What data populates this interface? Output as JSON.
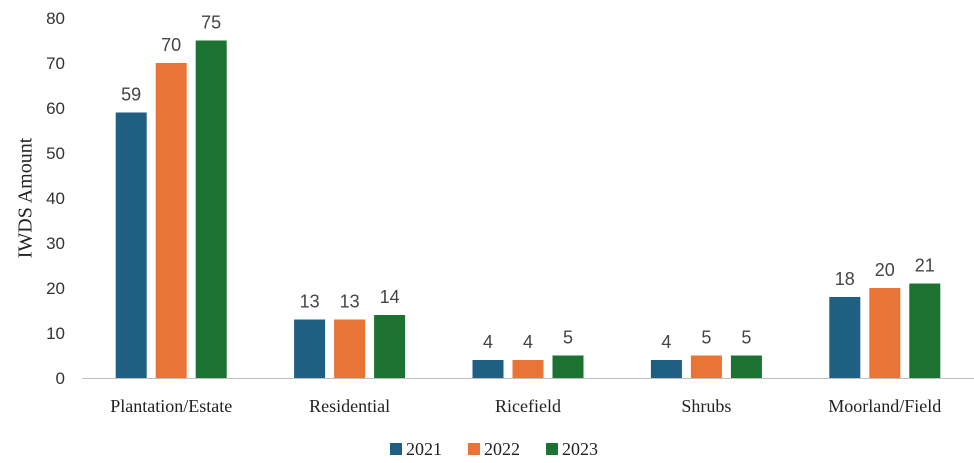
{
  "chart_data": {
    "type": "bar",
    "title": "",
    "xlabel": "",
    "ylabel": "IWDS Amount",
    "ylim": [
      0,
      80
    ],
    "yticks": [
      0,
      10,
      20,
      30,
      40,
      50,
      60,
      70,
      80
    ],
    "grid": false,
    "legend_position": "bottom",
    "categories": [
      "Plantation/Estate",
      "Residential",
      "Ricefield",
      "Shrubs",
      "Moorland/Field"
    ],
    "series": [
      {
        "name": "2021",
        "color": "#1f5f82",
        "values": [
          59,
          13,
          4,
          4,
          18
        ]
      },
      {
        "name": "2022",
        "color": "#ea7436",
        "values": [
          70,
          13,
          4,
          5,
          20
        ]
      },
      {
        "name": "2023",
        "color": "#1c7230",
        "values": [
          75,
          14,
          5,
          5,
          21
        ]
      }
    ]
  }
}
